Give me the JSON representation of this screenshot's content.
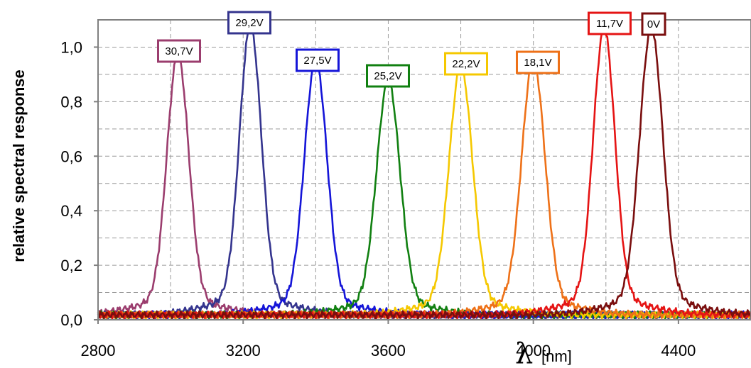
{
  "chart_data": {
    "type": "line",
    "ylabel": "relative spectral response",
    "xlabel_symbol": "λ",
    "xlabel_unit": "[nm]",
    "xlim": [
      2800,
      4600
    ],
    "ylim": [
      0,
      1.1
    ],
    "x_ticks": [
      "2800",
      "3200",
      "3600",
      "4000",
      "4400"
    ],
    "x_tick_values": [
      2800,
      3200,
      3600,
      4000,
      4400
    ],
    "y_ticks": [
      "0,0",
      "0,2",
      "0,4",
      "0,6",
      "0,8",
      "1,0"
    ],
    "y_tick_values": [
      0,
      0.2,
      0.4,
      0.6,
      0.8,
      1.0
    ],
    "grid": true,
    "series": [
      {
        "name": "30,7V",
        "color": "#9b3d6e",
        "peak_x": 3020,
        "peak_y": 0.9,
        "width": 30
      },
      {
        "name": "29,2V",
        "color": "#34348e",
        "peak_x": 3220,
        "peak_y": 1.0,
        "width": 30
      },
      {
        "name": "27,5V",
        "color": "#1515d8",
        "peak_x": 3400,
        "peak_y": 0.88,
        "width": 31
      },
      {
        "name": "25,2V",
        "color": "#118011",
        "peak_x": 3600,
        "peak_y": 0.81,
        "width": 32
      },
      {
        "name": "22,2V",
        "color": "#f5c800",
        "peak_x": 3800,
        "peak_y": 0.86,
        "width": 32
      },
      {
        "name": "18,1V",
        "color": "#ee7118",
        "peak_x": 4000,
        "peak_y": 0.88,
        "width": 32
      },
      {
        "name": "11,7V",
        "color": "#e51414",
        "peak_x": 4195,
        "peak_y": 0.99,
        "width": 30
      },
      {
        "name": "0V",
        "color": "#7a0e0e",
        "peak_x": 4325,
        "peak_y": 0.99,
        "width": 32
      }
    ],
    "annotations": [
      "30,7V",
      "29,2V",
      "27,5V",
      "25,2V",
      "22,2V",
      "18,1V",
      "11,7V",
      "0V"
    ]
  }
}
